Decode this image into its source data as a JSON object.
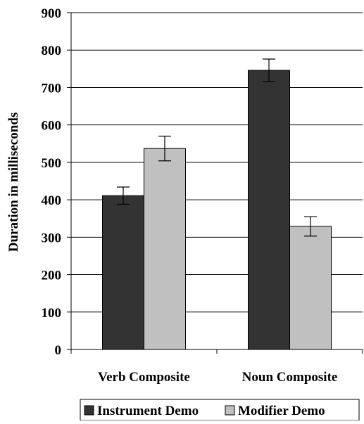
{
  "chart_data": {
    "type": "bar",
    "title": "",
    "xlabel": "",
    "ylabel": "Duration in milliseconds",
    "ylim": [
      0,
      900
    ],
    "yticks": [
      0,
      100,
      200,
      300,
      400,
      500,
      600,
      700,
      800,
      900
    ],
    "grid": true,
    "legend_position": "bottom",
    "categories": [
      "Verb Composite",
      "Noun Composite"
    ],
    "series": [
      {
        "name": "Instrument Demo",
        "color": "#333333",
        "values": [
          411,
          746
        ],
        "error": [
          23,
          30
        ]
      },
      {
        "name": "Modifier Demo",
        "color": "#c0c0c0",
        "values": [
          537,
          329
        ],
        "error": [
          33,
          26
        ]
      }
    ]
  }
}
